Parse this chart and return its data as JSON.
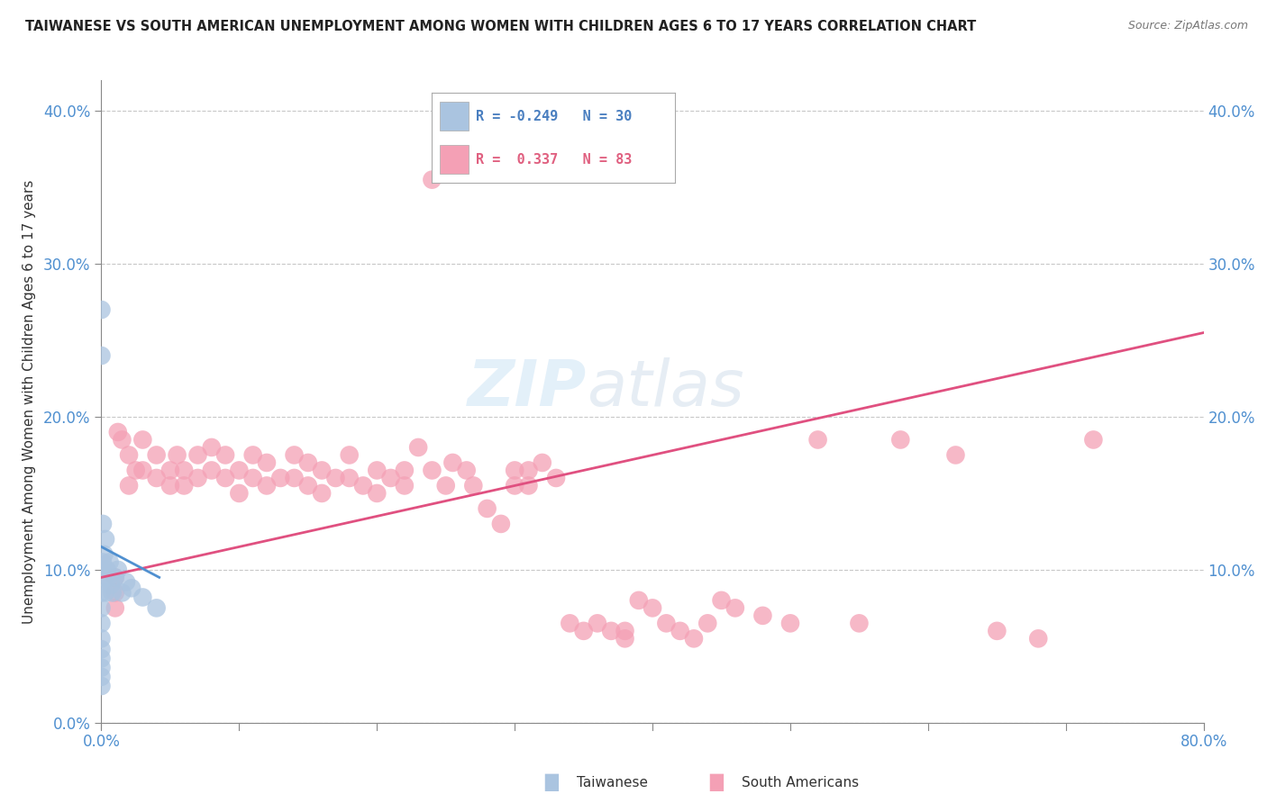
{
  "title": "TAIWANESE VS SOUTH AMERICAN UNEMPLOYMENT AMONG WOMEN WITH CHILDREN AGES 6 TO 17 YEARS CORRELATION CHART",
  "source": "Source: ZipAtlas.com",
  "ylabel": "Unemployment Among Women with Children Ages 6 to 17 years",
  "xmin": 0.0,
  "xmax": 0.8,
  "ymin": 0.0,
  "ymax": 0.42,
  "xticks_left": [
    0.0
  ],
  "xticks_right_val": 0.8,
  "yticks": [
    0.0,
    0.1,
    0.2,
    0.3,
    0.4
  ],
  "xleft_label": "0.0%",
  "xright_label": "80.0%",
  "ytick_labels_left": [
    "0.0%",
    "10.0%",
    "20.0%",
    "30.0%",
    "40.0%"
  ],
  "ytick_labels_right": [
    "",
    "10.0%",
    "20.0%",
    "30.0%",
    "40.0%"
  ],
  "legend_r1": "R = -0.249",
  "legend_n1": "N = 30",
  "legend_r2": "R =  0.337",
  "legend_n2": "N = 83",
  "taiwanese_color": "#aac4e0",
  "south_american_color": "#f4a0b5",
  "taiwanese_line_color": "#5090d0",
  "south_american_line_color": "#e05080",
  "watermark_zip": "ZIP",
  "watermark_atlas": "atlas",
  "background_color": "#ffffff",
  "grid_color": "#c8c8c8",
  "title_color": "#222222",
  "tick_color_blue": "#5090d0",
  "tick_color_right": "#5090d0",
  "legend_text_blue": "#4a7fc0",
  "legend_text_pink": "#e06080",
  "tw_x": [
    0.0,
    0.0,
    0.0,
    0.0,
    0.0,
    0.0,
    0.0,
    0.0,
    0.0,
    0.0,
    0.0,
    0.0,
    0.001,
    0.001,
    0.002,
    0.002,
    0.003,
    0.003,
    0.004,
    0.005,
    0.006,
    0.007,
    0.008,
    0.01,
    0.012,
    0.015,
    0.018,
    0.022,
    0.03,
    0.04
  ],
  "tw_y": [
    0.27,
    0.24,
    0.1,
    0.085,
    0.075,
    0.065,
    0.055,
    0.048,
    0.042,
    0.036,
    0.03,
    0.024,
    0.13,
    0.105,
    0.11,
    0.095,
    0.12,
    0.085,
    0.1,
    0.095,
    0.105,
    0.09,
    0.085,
    0.095,
    0.1,
    0.085,
    0.092,
    0.088,
    0.082,
    0.075
  ],
  "sa_x": [
    0.01,
    0.01,
    0.01,
    0.012,
    0.015,
    0.02,
    0.02,
    0.025,
    0.03,
    0.03,
    0.04,
    0.04,
    0.05,
    0.05,
    0.055,
    0.06,
    0.06,
    0.07,
    0.07,
    0.08,
    0.08,
    0.09,
    0.09,
    0.1,
    0.1,
    0.11,
    0.11,
    0.12,
    0.12,
    0.13,
    0.14,
    0.14,
    0.15,
    0.15,
    0.16,
    0.16,
    0.17,
    0.18,
    0.18,
    0.19,
    0.2,
    0.2,
    0.21,
    0.22,
    0.22,
    0.23,
    0.24,
    0.24,
    0.25,
    0.255,
    0.265,
    0.27,
    0.28,
    0.29,
    0.3,
    0.3,
    0.31,
    0.31,
    0.32,
    0.33,
    0.34,
    0.35,
    0.36,
    0.37,
    0.38,
    0.38,
    0.39,
    0.4,
    0.41,
    0.42,
    0.43,
    0.44,
    0.45,
    0.46,
    0.48,
    0.5,
    0.52,
    0.55,
    0.58,
    0.62,
    0.65,
    0.68,
    0.72
  ],
  "sa_y": [
    0.095,
    0.085,
    0.075,
    0.19,
    0.185,
    0.175,
    0.155,
    0.165,
    0.185,
    0.165,
    0.175,
    0.16,
    0.165,
    0.155,
    0.175,
    0.165,
    0.155,
    0.175,
    0.16,
    0.18,
    0.165,
    0.175,
    0.16,
    0.165,
    0.15,
    0.175,
    0.16,
    0.17,
    0.155,
    0.16,
    0.175,
    0.16,
    0.17,
    0.155,
    0.165,
    0.15,
    0.16,
    0.175,
    0.16,
    0.155,
    0.165,
    0.15,
    0.16,
    0.165,
    0.155,
    0.18,
    0.165,
    0.355,
    0.155,
    0.17,
    0.165,
    0.155,
    0.14,
    0.13,
    0.165,
    0.155,
    0.165,
    0.155,
    0.17,
    0.16,
    0.065,
    0.06,
    0.065,
    0.06,
    0.06,
    0.055,
    0.08,
    0.075,
    0.065,
    0.06,
    0.055,
    0.065,
    0.08,
    0.075,
    0.07,
    0.065,
    0.185,
    0.065,
    0.185,
    0.175,
    0.06,
    0.055,
    0.185
  ],
  "sa_line_x0": 0.0,
  "sa_line_x1": 0.8,
  "sa_line_y0": 0.095,
  "sa_line_y1": 0.255,
  "tw_line_x0": 0.0,
  "tw_line_x1": 0.042,
  "tw_line_y0": 0.115,
  "tw_line_y1": 0.095
}
